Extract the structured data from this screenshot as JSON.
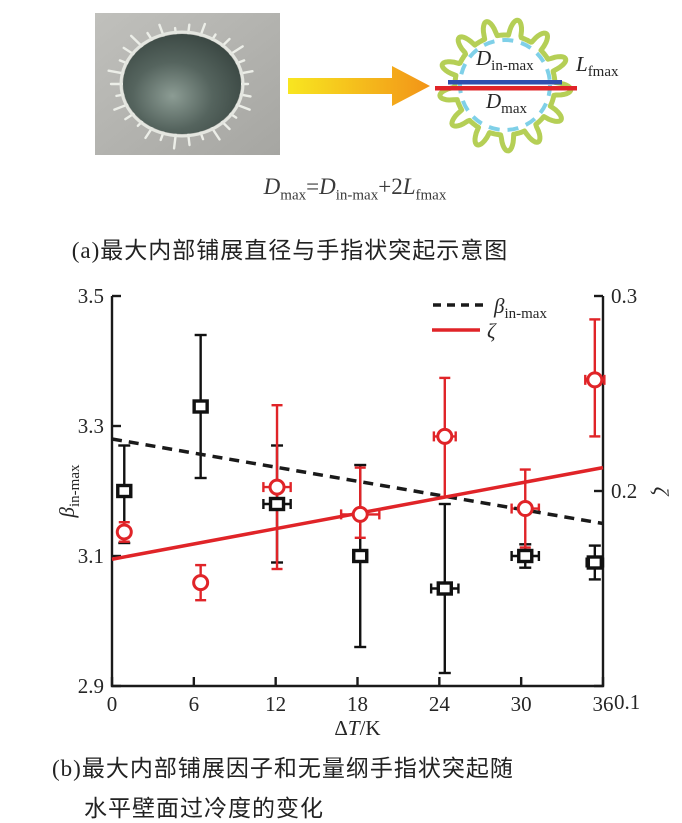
{
  "figure": {
    "panel_a": {
      "photo": {
        "description": "grayscale photo of frozen droplet splat with finger-like rim protrusions"
      },
      "schematic": {
        "outline_color": "#b5cf56",
        "dashed_circle_color": "#7fd0e8",
        "din_line_color": "#2f4fae",
        "dmax_line_color": "#e02428",
        "labels": {
          "din_main": "D",
          "din_sub": "in-max",
          "dmax_main": "D",
          "dmax_sub": "max",
          "lf_main": "L",
          "lf_sub": "fmax"
        }
      },
      "equation": {
        "lhs_main": "D",
        "lhs_sub": "max",
        "equals": "=",
        "rhs1_main": "D",
        "rhs1_sub": "in-max",
        "plus": "+2",
        "rhs2_main": "L",
        "rhs2_sub": "fmax"
      }
    },
    "captions": {
      "a": "(a)最大内部铺展直径与手指状突起示意图",
      "b_line1": "(b)最大内部铺展因子和无量纲手指状突起随",
      "b_line2": "水平壁面过冷度的变化"
    }
  },
  "chart_data": {
    "type": "scatter",
    "title": "",
    "grid": false,
    "x_axis": {
      "label": "ΔT/K",
      "label_parts": {
        "prefix": "Δ",
        "italic": "T",
        "suffix": "/K"
      },
      "range": [
        0,
        36
      ],
      "tick_values": [
        0,
        6,
        12,
        18,
        24,
        30,
        36
      ],
      "tick_labels": [
        "0",
        "6",
        "12",
        "18",
        "24",
        "30",
        "36"
      ]
    },
    "y_left_axis": {
      "label": "β in-max",
      "label_main": "β",
      "label_sub": "in-max",
      "range": [
        2.9,
        3.5
      ],
      "tick_values": [
        3.5,
        3.3,
        3.1,
        2.9
      ],
      "tick_labels": [
        "3.5",
        "3.3",
        "3.1",
        "2.9"
      ]
    },
    "y_right_axis": {
      "label": "ζ",
      "label_main": "ζ",
      "range": [
        0.1,
        0.3
      ],
      "tick_values": [
        0.3,
        0.2,
        0.1
      ],
      "tick_labels": [
        "0.3",
        "0.2",
        "0.1"
      ]
    },
    "legend": {
      "position": "top-right-inside",
      "entries": [
        {
          "series": "beta_in_max",
          "label_main": "β",
          "label_sub": "in-max",
          "line_style": "dashed",
          "line_color": "#1a1a1a"
        },
        {
          "series": "zeta",
          "label_main": "ζ",
          "label_sub": "",
          "line_style": "solid",
          "line_color": "#e02428"
        }
      ]
    },
    "series": [
      {
        "name": "beta_in_max",
        "axis": "left",
        "marker": "open-square",
        "color": "#111111",
        "points": [
          {
            "x": 0.9,
            "y": 3.2,
            "ey_plus": 0.07,
            "ey_minus": 0.08,
            "ex": 0.2
          },
          {
            "x": 6.5,
            "y": 3.33,
            "ey_plus": 0.11,
            "ey_minus": 0.11,
            "ex": 0.2
          },
          {
            "x": 12.1,
            "y": 3.18,
            "ey_plus": 0.09,
            "ey_minus": 0.09,
            "ex": 1.0
          },
          {
            "x": 18.2,
            "y": 3.1,
            "ey_plus": 0.14,
            "ey_minus": 0.14,
            "ex": 0.5
          },
          {
            "x": 24.4,
            "y": 3.05,
            "ey_plus": 0.13,
            "ey_minus": 0.13,
            "ex": 1.0
          },
          {
            "x": 30.3,
            "y": 3.1,
            "ey_plus": 0.018,
            "ey_minus": 0.018,
            "ex": 1.0
          },
          {
            "x": 35.4,
            "y": 3.09,
            "ey_plus": 0.026,
            "ey_minus": 0.026,
            "ex": 0.6
          }
        ]
      },
      {
        "name": "zeta",
        "axis": "right",
        "marker": "open-circle",
        "color": "#e02428",
        "points": [
          {
            "x": 0.9,
            "y": 0.179,
            "ey_plus": 0.005,
            "ey_minus": 0.005,
            "ex": 0.3
          },
          {
            "x": 6.5,
            "y": 0.153,
            "ey_plus": 0.009,
            "ey_minus": 0.009,
            "ex": 0.3
          },
          {
            "x": 12.1,
            "y": 0.202,
            "ey_plus": 0.042,
            "ey_minus": 0.042,
            "ex": 1.0
          },
          {
            "x": 18.2,
            "y": 0.188,
            "ey_plus": 0.024,
            "ey_minus": 0.012,
            "ex": 1.4
          },
          {
            "x": 24.4,
            "y": 0.228,
            "ey_plus": 0.03,
            "ey_minus": 0.031,
            "ex": 0.8
          },
          {
            "x": 30.3,
            "y": 0.191,
            "ey_plus": 0.02,
            "ey_minus": 0.02,
            "ex": 1.0
          },
          {
            "x": 35.4,
            "y": 0.257,
            "ey_plus": 0.031,
            "ey_minus": 0.029,
            "ex": 0.7
          }
        ]
      }
    ],
    "trend_lines": [
      {
        "name": "beta_fit",
        "axis": "left",
        "style": "dashed",
        "color": "#1a1a1a",
        "x": [
          0,
          36
        ],
        "y": [
          3.28,
          3.15
        ]
      },
      {
        "name": "zeta_fit",
        "axis": "right",
        "style": "solid",
        "color": "#e02428",
        "x": [
          0,
          36
        ],
        "y": [
          0.165,
          0.212
        ]
      }
    ]
  },
  "colors": {
    "red": "#e02428",
    "black": "#1a1a1a",
    "green": "#b5cf56",
    "light_blue": "#7fd0e8",
    "blue": "#2f4fae",
    "arrow_yellow": "#f8e620",
    "arrow_orange": "#f29418",
    "photo_bg": "#b2b2ae",
    "droplet_dark": "#3a4642",
    "droplet_mid": "#55645e",
    "droplet_light": "#8c9c94"
  }
}
